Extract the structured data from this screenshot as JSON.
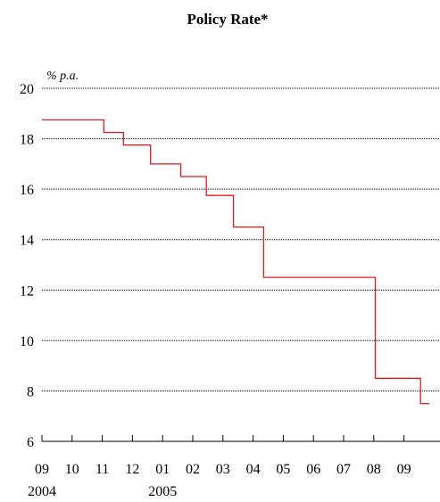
{
  "chart_data": {
    "type": "line",
    "title": "Policy Rate*",
    "unit_label": "% p.a.",
    "xlabel": "",
    "ylabel": "",
    "ylim": [
      6,
      20
    ],
    "y_ticks": [
      "6",
      "8",
      "10",
      "12",
      "14",
      "16",
      "18",
      "20"
    ],
    "x_tick_labels": [
      "09",
      "10",
      "11",
      "12",
      "01",
      "02",
      "03",
      "04",
      "05",
      "06",
      "07",
      "08",
      "09"
    ],
    "year_labels": [
      {
        "label": "2004",
        "month_index": 0
      },
      {
        "label": "2005",
        "month_index": 4
      }
    ],
    "grid": true,
    "line_color": "#e31a1c",
    "series": [
      {
        "x": [
          0,
          2.05,
          2.05,
          2.7,
          2.7,
          3.6,
          3.6,
          4.6,
          4.6,
          5.45,
          5.45,
          6.35,
          6.35,
          7.35,
          7.35,
          11.05,
          11.05,
          12.55,
          12.55,
          12.85
        ],
        "values": [
          18.75,
          18.75,
          18.25,
          18.25,
          17.75,
          17.75,
          17.0,
          17.0,
          16.5,
          16.5,
          15.75,
          15.75,
          14.5,
          14.5,
          12.5,
          12.5,
          8.5,
          8.5,
          7.5,
          7.5
        ]
      }
    ]
  }
}
